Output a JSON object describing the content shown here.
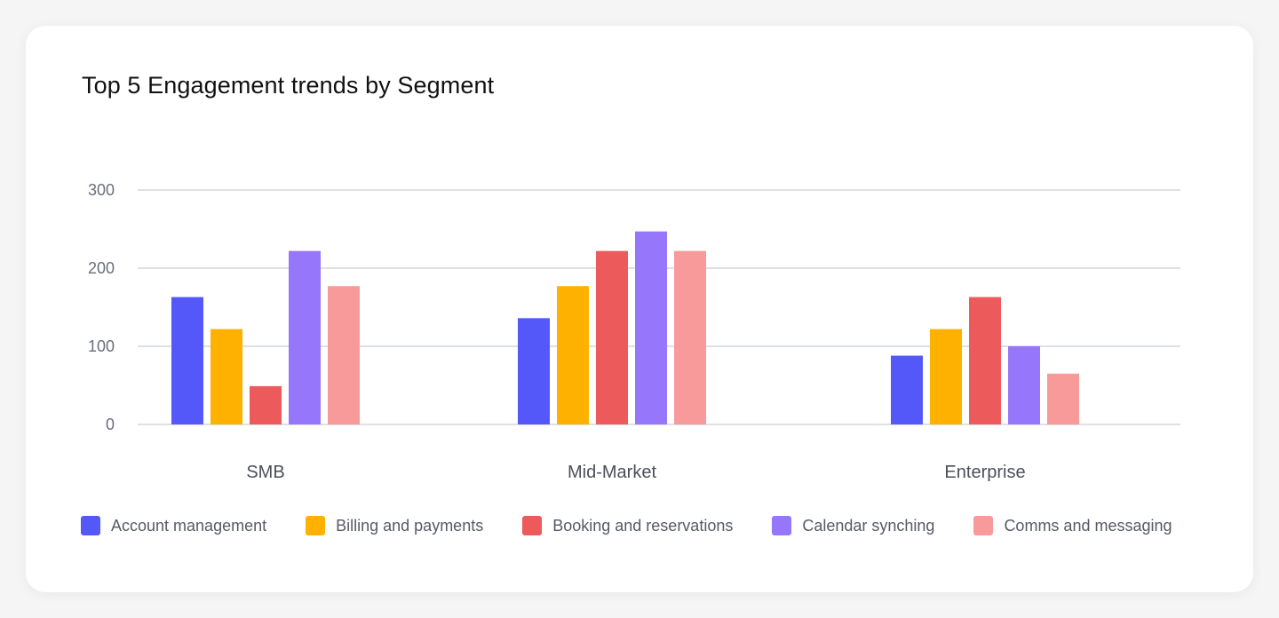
{
  "chart_data": {
    "type": "bar",
    "title": "Top 5 Engagement trends by Segment",
    "xlabel": "",
    "ylabel": "",
    "ylim": [
      0,
      300
    ],
    "yticks": [
      0,
      100,
      200,
      300
    ],
    "grid": true,
    "legend_position": "bottom-left",
    "categories": [
      "SMB",
      "Mid-Market",
      "Enterprise"
    ],
    "series": [
      {
        "name": "Account management",
        "color": "#5558f8",
        "values": [
          163,
          136,
          88
        ]
      },
      {
        "name": "Billing and payments",
        "color": "#ffb100",
        "values": [
          122,
          177,
          122
        ]
      },
      {
        "name": "Booking and reservations",
        "color": "#ec5a5b",
        "values": [
          49,
          222,
          163
        ]
      },
      {
        "name": "Calendar synching",
        "color": "#9676fb",
        "values": [
          222,
          247,
          100
        ]
      },
      {
        "name": "Comms and messaging",
        "color": "#f89a9a",
        "values": [
          177,
          222,
          65
        ]
      }
    ]
  }
}
